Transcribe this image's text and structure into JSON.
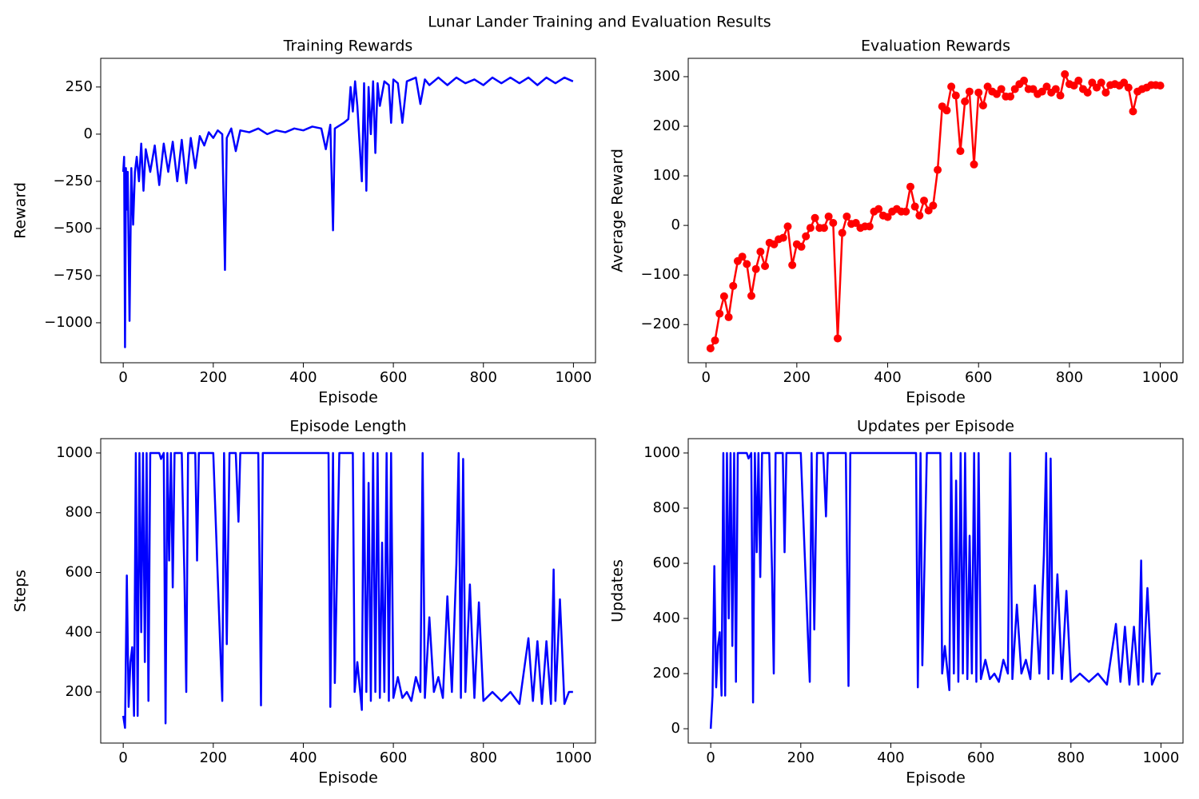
{
  "title": "Lunar Lander Training and Evaluation Results",
  "chart_data": [
    {
      "type": "line",
      "title": "Training Rewards",
      "xlabel": "Episode",
      "ylabel": "Reward",
      "xlim": [
        -50,
        1049
      ],
      "ylim": [
        -1212,
        402
      ],
      "xticks": [
        0,
        200,
        400,
        600,
        800,
        1000
      ],
      "yticks": [
        {
          "value": -1000,
          "label": "−1000"
        },
        {
          "value": -750,
          "label": "−750"
        },
        {
          "value": -500,
          "label": "−500"
        },
        {
          "value": -250,
          "label": "−250"
        },
        0,
        250
      ],
      "x": [
        0,
        2,
        4,
        6,
        8,
        10,
        14,
        18,
        22,
        26,
        30,
        35,
        40,
        45,
        50,
        60,
        70,
        80,
        90,
        100,
        110,
        120,
        130,
        140,
        150,
        160,
        170,
        180,
        190,
        200,
        210,
        220,
        226,
        230,
        240,
        250,
        260,
        280,
        300,
        320,
        340,
        360,
        380,
        400,
        420,
        440,
        450,
        460,
        466,
        470,
        490,
        500,
        505,
        510,
        515,
        520,
        530,
        535,
        540,
        545,
        550,
        555,
        560,
        565,
        570,
        580,
        590,
        595,
        600,
        610,
        620,
        630,
        640,
        650,
        660,
        670,
        680,
        700,
        720,
        740,
        760,
        780,
        800,
        820,
        840,
        860,
        880,
        900,
        920,
        940,
        960,
        980,
        999
      ],
      "color": "#0000ff",
      "values": [
        -200,
        -120,
        -1130,
        -180,
        -400,
        -200,
        -990,
        -180,
        -480,
        -200,
        -120,
        -250,
        -50,
        -300,
        -80,
        -200,
        -60,
        -270,
        -50,
        -200,
        -40,
        -250,
        -30,
        -260,
        -20,
        -180,
        -10,
        -60,
        10,
        -20,
        20,
        0,
        -720,
        -20,
        30,
        -90,
        20,
        10,
        30,
        0,
        20,
        10,
        30,
        20,
        40,
        30,
        -80,
        50,
        -510,
        30,
        60,
        80,
        250,
        120,
        280,
        150,
        -250,
        270,
        -300,
        250,
        0,
        280,
        -100,
        270,
        150,
        280,
        260,
        60,
        290,
        270,
        60,
        280,
        290,
        300,
        160,
        290,
        260,
        300,
        260,
        300,
        270,
        290,
        260,
        300,
        270,
        300,
        270,
        300,
        260,
        300,
        270,
        300,
        280
      ]
    },
    {
      "type": "line",
      "title": "Evaluation Rewards",
      "xlabel": "Episode",
      "ylabel": "Average Reward",
      "xlim": [
        -39,
        1050
      ],
      "ylim": [
        -277,
        337
      ],
      "marker": "o",
      "xticks": [
        0,
        200,
        400,
        600,
        800,
        1000
      ],
      "yticks": [
        {
          "value": -200,
          "label": "−200"
        },
        {
          "value": -100,
          "label": "−100"
        },
        0,
        100,
        200,
        300
      ],
      "x": [
        10,
        20,
        30,
        40,
        50,
        60,
        70,
        80,
        90,
        100,
        110,
        120,
        130,
        140,
        150,
        160,
        170,
        180,
        190,
        200,
        210,
        220,
        230,
        240,
        250,
        260,
        270,
        280,
        290,
        300,
        310,
        320,
        330,
        340,
        350,
        360,
        370,
        380,
        390,
        400,
        410,
        420,
        430,
        440,
        450,
        460,
        470,
        480,
        490,
        500,
        510,
        520,
        530,
        540,
        550,
        560,
        570,
        580,
        590,
        600,
        610,
        620,
        630,
        640,
        650,
        660,
        670,
        680,
        690,
        700,
        710,
        720,
        730,
        740,
        750,
        760,
        770,
        780,
        790,
        800,
        810,
        820,
        830,
        840,
        850,
        860,
        870,
        880,
        890,
        900,
        910,
        920,
        930,
        940,
        950,
        960,
        970,
        980,
        990,
        1000
      ],
      "color": "#ff0000",
      "values": [
        -248,
        -232,
        -178,
        -143,
        -185,
        -122,
        -72,
        -63,
        -78,
        -142,
        -88,
        -53,
        -82,
        -35,
        -38,
        -28,
        -25,
        -2,
        -80,
        -38,
        -43,
        -22,
        -5,
        15,
        -5,
        -5,
        18,
        5,
        -228,
        -15,
        18,
        3,
        5,
        -5,
        -2,
        -2,
        28,
        33,
        20,
        17,
        28,
        33,
        28,
        28,
        78,
        38,
        20,
        50,
        30,
        40,
        112,
        240,
        232,
        280,
        262,
        150,
        250,
        270,
        123,
        268,
        242,
        280,
        270,
        265,
        275,
        260,
        260,
        275,
        285,
        292,
        275,
        275,
        265,
        270,
        280,
        268,
        275,
        262,
        305,
        285,
        282,
        292,
        275,
        268,
        288,
        278,
        288,
        268,
        283,
        285,
        282,
        288,
        278,
        230,
        270,
        275,
        278,
        283,
        283,
        282
      ]
    },
    {
      "type": "line",
      "title": "Episode Length",
      "xlabel": "Episode",
      "ylabel": "Steps",
      "xlim": [
        -50,
        1049
      ],
      "ylim": [
        29,
        1048
      ],
      "xticks": [
        0,
        200,
        400,
        600,
        800,
        1000
      ],
      "yticks": [
        200,
        400,
        600,
        800,
        1000
      ],
      "x": [
        0,
        4,
        8,
        12,
        16,
        20,
        24,
        28,
        32,
        36,
        40,
        44,
        48,
        52,
        56,
        60,
        80,
        84,
        90,
        94,
        98,
        102,
        106,
        110,
        114,
        130,
        136,
        140,
        144,
        160,
        164,
        168,
        200,
        216,
        220,
        224,
        230,
        236,
        250,
        256,
        260,
        300,
        306,
        310,
        456,
        460,
        466,
        470,
        480,
        510,
        514,
        520,
        530,
        534,
        540,
        545,
        550,
        555,
        560,
        565,
        570,
        575,
        580,
        585,
        590,
        595,
        600,
        610,
        620,
        630,
        640,
        650,
        660,
        665,
        670,
        680,
        690,
        700,
        710,
        720,
        730,
        740,
        745,
        750,
        755,
        760,
        770,
        780,
        790,
        800,
        820,
        840,
        860,
        880,
        900,
        910,
        920,
        930,
        940,
        950,
        956,
        960,
        970,
        980,
        990,
        999
      ],
      "color": "#0000ff",
      "values": [
        120,
        80,
        590,
        150,
        300,
        350,
        120,
        1000,
        120,
        1000,
        400,
        1000,
        300,
        1000,
        170,
        1000,
        1000,
        980,
        1000,
        95,
        1000,
        640,
        1000,
        550,
        1000,
        1000,
        580,
        200,
        1000,
        1000,
        640,
        1000,
        1000,
        330,
        170,
        1000,
        360,
        1000,
        1000,
        770,
        1000,
        1000,
        155,
        1000,
        1000,
        150,
        1000,
        230,
        1000,
        1000,
        200,
        300,
        140,
        1000,
        200,
        900,
        170,
        1000,
        200,
        1000,
        180,
        700,
        200,
        1000,
        170,
        1000,
        180,
        250,
        180,
        200,
        170,
        250,
        200,
        1000,
        180,
        450,
        200,
        250,
        180,
        520,
        200,
        630,
        1000,
        180,
        980,
        200,
        560,
        180,
        500,
        170,
        200,
        170,
        200,
        160,
        380,
        170,
        370,
        160,
        370,
        160,
        610,
        170,
        510,
        160,
        200,
        200
      ]
    },
    {
      "type": "line",
      "title": "Updates per Episode",
      "xlabel": "Episode",
      "ylabel": "Updates",
      "xlim": [
        -50,
        1049
      ],
      "ylim": [
        -52,
        1052
      ],
      "xticks": [
        0,
        200,
        400,
        600,
        800,
        1000
      ],
      "yticks": [
        0,
        200,
        400,
        600,
        800,
        1000
      ],
      "x": [
        0,
        4,
        8,
        12,
        16,
        20,
        24,
        28,
        32,
        36,
        40,
        44,
        48,
        52,
        56,
        60,
        80,
        84,
        90,
        94,
        98,
        102,
        106,
        110,
        114,
        130,
        136,
        140,
        144,
        160,
        164,
        168,
        200,
        216,
        220,
        224,
        230,
        236,
        250,
        256,
        260,
        300,
        306,
        310,
        456,
        460,
        466,
        470,
        480,
        510,
        514,
        520,
        530,
        534,
        540,
        545,
        550,
        555,
        560,
        565,
        570,
        575,
        580,
        585,
        590,
        595,
        600,
        610,
        620,
        630,
        640,
        650,
        660,
        665,
        670,
        680,
        690,
        700,
        710,
        720,
        730,
        740,
        745,
        750,
        755,
        760,
        770,
        780,
        790,
        800,
        820,
        840,
        860,
        880,
        900,
        910,
        920,
        930,
        940,
        950,
        956,
        960,
        970,
        980,
        990,
        999
      ],
      "color": "#0000ff",
      "values": [
        0,
        120,
        590,
        150,
        300,
        350,
        120,
        1000,
        120,
        1000,
        400,
        1000,
        300,
        1000,
        170,
        1000,
        1000,
        980,
        1000,
        95,
        1000,
        640,
        1000,
        550,
        1000,
        1000,
        580,
        200,
        1000,
        1000,
        640,
        1000,
        1000,
        330,
        170,
        1000,
        360,
        1000,
        1000,
        770,
        1000,
        1000,
        155,
        1000,
        1000,
        150,
        1000,
        230,
        1000,
        1000,
        200,
        300,
        140,
        1000,
        200,
        900,
        170,
        1000,
        200,
        1000,
        180,
        700,
        200,
        1000,
        170,
        1000,
        180,
        250,
        180,
        200,
        170,
        250,
        200,
        1000,
        180,
        450,
        200,
        250,
        180,
        520,
        200,
        630,
        1000,
        180,
        980,
        200,
        560,
        180,
        500,
        170,
        200,
        170,
        200,
        160,
        380,
        170,
        370,
        160,
        370,
        160,
        610,
        170,
        510,
        160,
        200,
        200
      ]
    }
  ]
}
